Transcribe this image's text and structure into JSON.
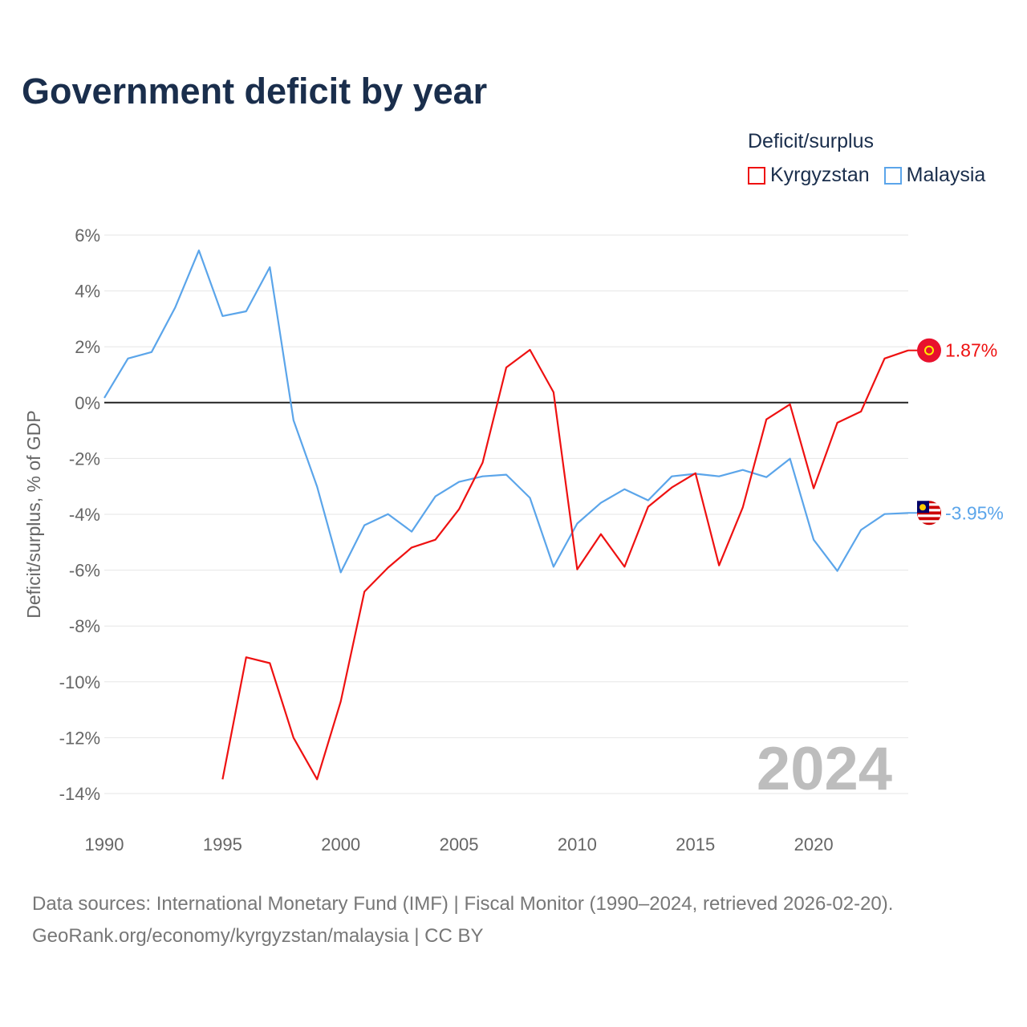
{
  "chart_data": {
    "type": "line",
    "title": "Government deficit by year",
    "ylabel": "Deficit/surplus, % of GDP",
    "xlabel": "",
    "xlim": [
      1990,
      2024
    ],
    "ylim": [
      -14,
      6
    ],
    "y_ticks": [
      6,
      4,
      2,
      0,
      -2,
      -4,
      -6,
      -8,
      -10,
      -12,
      -14
    ],
    "y_tick_labels": [
      "6%",
      "4%",
      "2%",
      "0%",
      "-2%",
      "-4%",
      "-6%",
      "-8%",
      "-10%",
      "-12%",
      "-14%"
    ],
    "x_ticks": [
      1990,
      1995,
      2000,
      2005,
      2010,
      2015,
      2020
    ],
    "x_tick_labels": [
      "1990",
      "1995",
      "2000",
      "2005",
      "2010",
      "2015",
      "2020"
    ],
    "grid": true,
    "legend_title": "Deficit/surplus",
    "legend_position": "top-right",
    "year_watermark": "2024",
    "series": [
      {
        "name": "Kyrgyzstan",
        "color": "#ee1111",
        "end_label": "1.87%",
        "x": [
          1995,
          1996,
          1997,
          1998,
          1999,
          2000,
          2001,
          2002,
          2003,
          2004,
          2005,
          2006,
          2007,
          2008,
          2009,
          2010,
          2011,
          2012,
          2013,
          2014,
          2015,
          2016,
          2017,
          2018,
          2019,
          2020,
          2021,
          2022,
          2023,
          2024
        ],
        "values": [
          -13.49,
          -9.12,
          -9.33,
          -12.0,
          -13.49,
          -10.7,
          -6.77,
          -5.91,
          -5.19,
          -4.91,
          -3.82,
          -2.15,
          1.26,
          1.89,
          0.37,
          -5.97,
          -4.71,
          -5.88,
          -3.73,
          -3.04,
          -2.53,
          -5.83,
          -3.76,
          -0.6,
          -0.06,
          -3.07,
          -0.72,
          -0.32,
          1.58,
          1.87
        ]
      },
      {
        "name": "Malaysia",
        "color": "#5ba5ea",
        "end_label": "-3.95%",
        "x": [
          1990,
          1991,
          1992,
          1993,
          1994,
          1995,
          1996,
          1997,
          1998,
          1999,
          2000,
          2001,
          2002,
          2003,
          2004,
          2005,
          2006,
          2007,
          2008,
          2009,
          2010,
          2011,
          2012,
          2013,
          2014,
          2015,
          2016,
          2017,
          2018,
          2019,
          2020,
          2021,
          2022,
          2023,
          2024
        ],
        "values": [
          0.17,
          1.58,
          1.81,
          3.41,
          5.45,
          3.1,
          3.27,
          4.85,
          -0.63,
          -3.01,
          -6.08,
          -4.39,
          -3.99,
          -4.62,
          -3.36,
          -2.84,
          -2.64,
          -2.58,
          -3.41,
          -5.88,
          -4.33,
          -3.59,
          -3.1,
          -3.5,
          -2.64,
          -2.55,
          -2.64,
          -2.41,
          -2.67,
          -2.01,
          -4.91,
          -6.03,
          -4.56,
          -3.99,
          -3.95
        ]
      }
    ]
  },
  "source_line1": "Data sources: International Monetary Fund (IMF) | Fiscal Monitor (1990–2024, retrieved 2026-02-20).",
  "source_line2": "GeoRank.org/economy/kyrgyzstan/malaysia | CC BY"
}
